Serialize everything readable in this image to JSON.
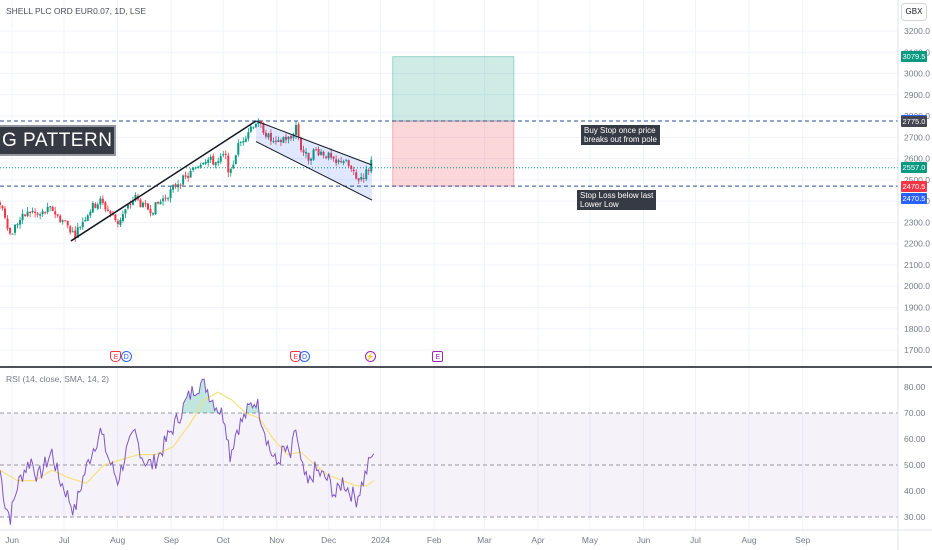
{
  "header": {
    "symbol_line": "SHELL PLC ORD EUR0.07, 1D, LSE",
    "currency": "GBX"
  },
  "rsi_header": "RSI (14, close, SMA, 14, 2)",
  "pattern_label": "G PATTERN",
  "notes": {
    "buy": "Buy Stop once price\nbreaks out from pole",
    "stop": "Stop Loss below last\nLower Low"
  },
  "price_tags": [
    {
      "text": "3079.5",
      "price": 3079.5,
      "color": "#089981"
    },
    {
      "text": "2777.0",
      "price": 2777.0,
      "color": "#2962ff"
    },
    {
      "text": "2775.0",
      "price": 2775.0,
      "color": "#434651"
    },
    {
      "text": "2557.0",
      "price": 2557.0,
      "color": "#089981"
    },
    {
      "text": "2470.5",
      "price": 2470.5,
      "color": "#f23645"
    },
    {
      "text": "2470.5",
      "price": 2470.5,
      "color": "#2962ff",
      "offset": 1
    }
  ],
  "events": [
    {
      "label": "E",
      "kind": "earn",
      "date": 67
    },
    {
      "label": "D",
      "kind": "div",
      "date": 73
    },
    {
      "label": "E",
      "kind": "earn",
      "date": 171
    },
    {
      "label": "D",
      "kind": "div",
      "date": 176
    },
    {
      "label": "⚡",
      "kind": "split",
      "date": 214
    },
    {
      "label": "E",
      "kind": "earn-future",
      "date": 253
    }
  ],
  "colors": {
    "up": "#089981",
    "down": "#f23645",
    "rsi": "#7e57c2",
    "rsi_ma": "#f5e27a",
    "grid": "#f0f3fa"
  },
  "chart_data": [
    {
      "type": "candlestick",
      "title": "SHELL PLC ORD EUR0.07, 1D, LSE",
      "x_unit": "days from 1 Jun 2023",
      "x_range": [
        0,
        519
      ],
      "ylim": [
        1660,
        3260
      ],
      "y_ticks": [
        1700,
        1800,
        1900,
        2000,
        2100,
        2200,
        2300,
        2400,
        2500,
        2600,
        2700,
        2800,
        2900,
        3000,
        3100,
        3200
      ],
      "x_tick_labels": [
        {
          "label": "Jun",
          "date": 7
        },
        {
          "label": "Jul",
          "date": 37
        },
        {
          "label": "Aug",
          "date": 68
        },
        {
          "label": "Sep",
          "date": 99
        },
        {
          "label": "Oct",
          "date": 129
        },
        {
          "label": "Nov",
          "date": 160
        },
        {
          "label": "Dec",
          "date": 190
        },
        {
          "label": "2024",
          "date": 220
        },
        {
          "label": "Feb",
          "date": 251
        },
        {
          "label": "Mar",
          "date": 280
        },
        {
          "label": "Apr",
          "date": 311
        },
        {
          "label": "May",
          "date": 341
        },
        {
          "label": "Jun",
          "date": 372
        },
        {
          "label": "Jul",
          "date": 402
        },
        {
          "label": "Aug",
          "date": 433
        },
        {
          "label": "Sep",
          "date": 464
        }
      ],
      "key_points": [
        [
          0,
          2395
        ],
        [
          3,
          2330
        ],
        [
          6,
          2240
        ],
        [
          10,
          2300
        ],
        [
          14,
          2330
        ],
        [
          18,
          2355
        ],
        [
          22,
          2330
        ],
        [
          26,
          2350
        ],
        [
          30,
          2365
        ],
        [
          34,
          2320
        ],
        [
          38,
          2300
        ],
        [
          43,
          2240
        ],
        [
          48,
          2310
        ],
        [
          53,
          2370
        ],
        [
          58,
          2400
        ],
        [
          63,
          2350
        ],
        [
          68,
          2300
        ],
        [
          73,
          2360
        ],
        [
          78,
          2420
        ],
        [
          83,
          2370
        ],
        [
          88,
          2360
        ],
        [
          93,
          2400
        ],
        [
          98,
          2440
        ],
        [
          103,
          2490
        ],
        [
          108,
          2510
        ],
        [
          113,
          2560
        ],
        [
          118,
          2600
        ],
        [
          122,
          2590
        ],
        [
          126,
          2580
        ],
        [
          130,
          2620
        ],
        [
          133,
          2520
        ],
        [
          137,
          2650
        ],
        [
          141,
          2700
        ],
        [
          145,
          2750
        ],
        [
          148,
          2775
        ],
        [
          152,
          2740
        ],
        [
          156,
          2690
        ],
        [
          160,
          2660
        ],
        [
          164,
          2700
        ],
        [
          168,
          2690
        ],
        [
          171,
          2760
        ],
        [
          174,
          2650
        ],
        [
          178,
          2600
        ],
        [
          182,
          2640
        ],
        [
          186,
          2630
        ],
        [
          190,
          2610
        ],
        [
          194,
          2570
        ],
        [
          198,
          2600
        ],
        [
          202,
          2560
        ],
        [
          206,
          2500
        ],
        [
          210,
          2520
        ],
        [
          213,
          2550
        ],
        [
          215,
          2600
        ],
        [
          216,
          2557
        ]
      ],
      "pole": {
        "start": [
          41,
          2213
        ],
        "end": [
          148,
          2777
        ]
      },
      "flag_channel": {
        "upper": [
          [
            148,
            2777
          ],
          [
            215,
            2570
          ]
        ],
        "lower": [
          [
            148,
            2680
          ],
          [
            215,
            2405
          ]
        ]
      },
      "levels": {
        "target": 3079.5,
        "entry": 2777.0,
        "pole_top": 2775.0,
        "last": 2557.0,
        "stop": 2470.5
      },
      "position": {
        "start": 227,
        "end": 297,
        "entry": 2777,
        "target": 3079.5,
        "stop": 2470.5
      }
    },
    {
      "type": "line",
      "title": "RSI (14, close, SMA, 14, 2)",
      "ylim": [
        26,
        84
      ],
      "y_ticks": [
        30,
        40,
        50,
        60,
        70,
        80
      ],
      "bands": {
        "upper": 70,
        "middle": 50,
        "lower": 30
      },
      "series": [
        {
          "key_points": [
            [
              0,
              48
            ],
            [
              3,
              35
            ],
            [
              6,
              30
            ],
            [
              10,
              42
            ],
            [
              14,
              48
            ],
            [
              18,
              52
            ],
            [
              22,
              45
            ],
            [
              26,
              50
            ],
            [
              30,
              55
            ],
            [
              34,
              45
            ],
            [
              38,
              40
            ],
            [
              43,
              32
            ],
            [
              48,
              45
            ],
            [
              53,
              55
            ],
            [
              58,
              63
            ],
            [
              63,
              52
            ],
            [
              68,
              44
            ],
            [
              73,
              55
            ],
            [
              78,
              62
            ],
            [
              83,
              52
            ],
            [
              88,
              50
            ],
            [
              93,
              55
            ],
            [
              98,
              62
            ],
            [
              103,
              68
            ],
            [
              108,
              75
            ],
            [
              113,
              80
            ],
            [
              118,
              82
            ],
            [
              122,
              76
            ],
            [
              126,
              72
            ],
            [
              130,
              68
            ],
            [
              133,
              54
            ],
            [
              137,
              64
            ],
            [
              141,
              68
            ],
            [
              145,
              73
            ],
            [
              148,
              75
            ],
            [
              152,
              66
            ],
            [
              156,
              56
            ],
            [
              160,
              50
            ],
            [
              164,
              56
            ],
            [
              168,
              53
            ],
            [
              171,
              64
            ],
            [
              174,
              50
            ],
            [
              178,
              42
            ],
            [
              182,
              48
            ],
            [
              186,
              46
            ],
            [
              190,
              44
            ],
            [
              194,
              38
            ],
            [
              198,
              44
            ],
            [
              202,
              40
            ],
            [
              206,
              37
            ],
            [
              210,
              44
            ],
            [
              213,
              50
            ],
            [
              215,
              54
            ],
            [
              216,
              52
            ]
          ]
        },
        {
          "key_points": [
            [
              0,
              48
            ],
            [
              10,
              44
            ],
            [
              20,
              44
            ],
            [
              30,
              48
            ],
            [
              40,
              45
            ],
            [
              50,
              43
            ],
            [
              60,
              50
            ],
            [
              70,
              52
            ],
            [
              80,
              54
            ],
            [
              90,
              54
            ],
            [
              100,
              57
            ],
            [
              110,
              66
            ],
            [
              118,
              75
            ],
            [
              126,
              78
            ],
            [
              134,
              75
            ],
            [
              142,
              70
            ],
            [
              150,
              68
            ],
            [
              158,
              60
            ],
            [
              166,
              54
            ],
            [
              174,
              55
            ],
            [
              182,
              50
            ],
            [
              190,
              46
            ],
            [
              198,
              44
            ],
            [
              206,
              42
            ],
            [
              212,
              42
            ],
            [
              216,
              44
            ]
          ]
        }
      ]
    }
  ]
}
